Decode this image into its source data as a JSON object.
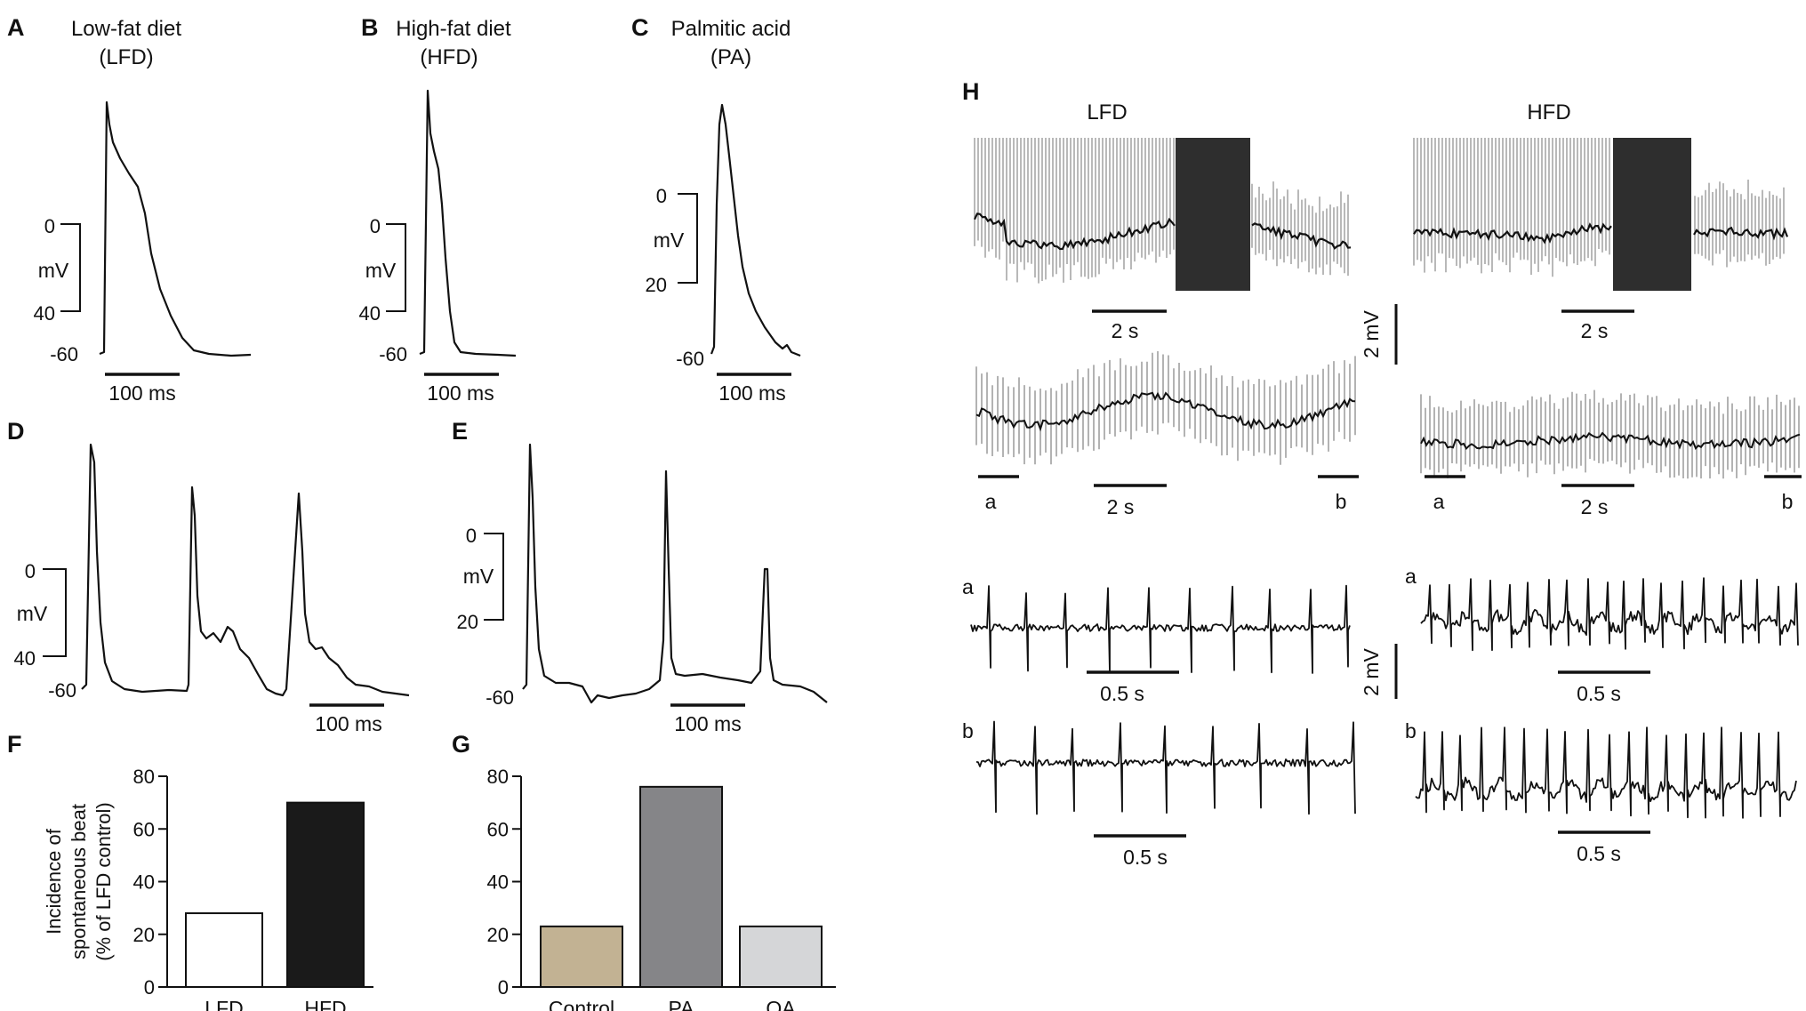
{
  "panels": {
    "A": {
      "letter": "A",
      "title1": "Low-fat diet",
      "title2": "(LFD)",
      "y_top": "0",
      "y_unit": "mV",
      "y_bottom": "40",
      "rest": "-60",
      "time": "100 ms"
    },
    "B": {
      "letter": "B",
      "title1": "High-fat diet",
      "title2": "(HFD)",
      "y_top": "0",
      "y_unit": "mV",
      "y_bottom": "40",
      "rest": "-60",
      "time": "100 ms"
    },
    "C": {
      "letter": "C",
      "title1": "Palmitic acid",
      "title2": "(PA)",
      "y_top": "0",
      "y_unit": "mV",
      "y_bottom": "20",
      "rest": "-60",
      "time": "100 ms"
    },
    "D": {
      "letter": "D",
      "y_top": "0",
      "y_unit": "mV",
      "y_bottom": "40",
      "rest": "-60",
      "time": "100 ms"
    },
    "E": {
      "letter": "E",
      "y_top": "0",
      "y_unit": "mV",
      "y_bottom": "20",
      "rest": "-60",
      "time": "100 ms"
    },
    "F": {
      "letter": "F"
    },
    "G": {
      "letter": "G"
    },
    "H": {
      "letter": "H",
      "lfd": "LFD",
      "hfd": "HFD",
      "scale_2s": "2 s",
      "scale_2mv": "2 mV",
      "scale_05s": "0.5 s",
      "mark_a": "a",
      "mark_b": "b"
    }
  },
  "colors": {
    "lfd_bar": "#ffffff",
    "hfd_bar": "#1a1a1a",
    "control_bar": "#c2b293",
    "pa_bar": "#858588",
    "oa_bar": "#d5d6d8"
  },
  "chart_data": [
    {
      "id": "F",
      "type": "bar",
      "ylabel_lines": [
        "Incidence of",
        "spontaneous beat",
        "(% of LFD control)"
      ],
      "categories": [
        "LFD",
        "HFD"
      ],
      "values": [
        28,
        70
      ],
      "yticks": [
        "0",
        "20",
        "40",
        "60",
        "80"
      ],
      "ylim": [
        0,
        80
      ]
    },
    {
      "id": "G",
      "type": "bar",
      "categories": [
        "Control",
        "PA",
        "OA"
      ],
      "values": [
        23,
        76,
        23
      ],
      "yticks": [
        "0",
        "20",
        "40",
        "60",
        "80"
      ],
      "ylim": [
        0,
        80
      ]
    }
  ]
}
